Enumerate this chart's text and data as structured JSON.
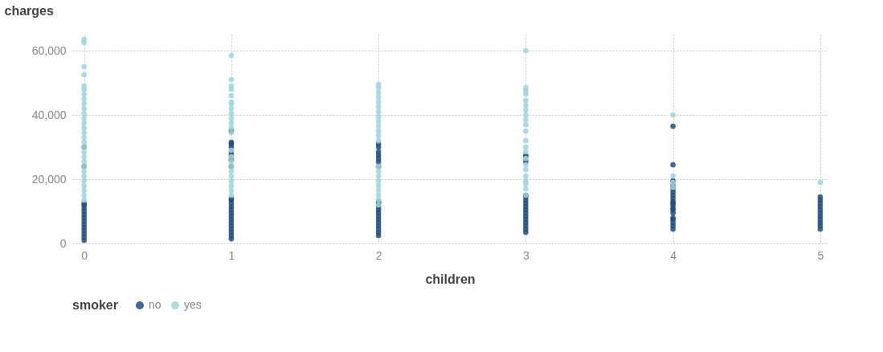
{
  "chart_data": {
    "type": "scatter",
    "xlabel": "children",
    "ylabel": "charges",
    "legend_title": "smoker",
    "legend": "bottom",
    "grid": true,
    "marker": "circle",
    "xlim": [
      -0.08,
      5.05
    ],
    "xticks": [
      0,
      1,
      2,
      3,
      4,
      5
    ],
    "ylim": [
      0,
      65000
    ],
    "yticks": [
      0,
      {
        "value": 20000,
        "label": "20,000"
      },
      {
        "value": 40000,
        "label": "40,000"
      },
      {
        "value": 60000,
        "label": "60,000"
      }
    ],
    "series": [
      {
        "name": "no",
        "color": "#1f4e80",
        "x": [
          0,
          0,
          0,
          0,
          0,
          0,
          0,
          0,
          0,
          0,
          0,
          0,
          0,
          0,
          0,
          1,
          1,
          1,
          1,
          1,
          1,
          1,
          1,
          1,
          1,
          1,
          1,
          1,
          1,
          1,
          1,
          1,
          1,
          1,
          1,
          1,
          1,
          2,
          2,
          2,
          2,
          2,
          2,
          2,
          2,
          2,
          2,
          2,
          2,
          2,
          2,
          2,
          2,
          2,
          2,
          2,
          3,
          3,
          3,
          3,
          3,
          3,
          3,
          3,
          3,
          3,
          3,
          3,
          3,
          3,
          3,
          3,
          4,
          4,
          4,
          4,
          4,
          4,
          4,
          4,
          4,
          4,
          4,
          4,
          4,
          4,
          4,
          4,
          4,
          4,
          4,
          5,
          5,
          5,
          5,
          5,
          5,
          5,
          5,
          5,
          5,
          5
        ],
        "values": [
          1000,
          2000,
          3000,
          4000,
          5000,
          6000,
          7000,
          8000,
          9000,
          10000,
          11000,
          12000,
          12500,
          24000,
          30000,
          1500,
          2500,
          3500,
          4500,
          5500,
          6500,
          7500,
          8500,
          9500,
          10500,
          11500,
          12500,
          13500,
          14000,
          24000,
          26000,
          27500,
          28500,
          30000,
          31000,
          31500,
          35000,
          2500,
          3500,
          4500,
          5500,
          6500,
          7500,
          8500,
          9500,
          10500,
          11500,
          12500,
          13000,
          24000,
          25500,
          26500,
          27500,
          28500,
          30000,
          31000,
          3500,
          4500,
          5500,
          6500,
          7500,
          8500,
          9500,
          10500,
          11500,
          12500,
          13500,
          14500,
          15000,
          25500,
          27000,
          27500,
          4500,
          5500,
          6500,
          7500,
          8000,
          9500,
          10500,
          11000,
          12000,
          12500,
          13000,
          14000,
          15000,
          16000,
          17000,
          18000,
          19500,
          24500,
          36500,
          4500,
          5500,
          6500,
          7500,
          8500,
          9500,
          10500,
          11500,
          12500,
          13500,
          14500
        ]
      },
      {
        "name": "yes",
        "color": "#9fd5dc",
        "x": [
          0,
          0,
          0,
          0,
          0,
          0,
          0,
          0,
          0,
          0,
          0,
          0,
          0,
          0,
          0,
          0,
          0,
          0,
          0,
          0,
          0,
          0,
          0,
          0,
          0,
          0,
          0,
          0,
          0,
          1,
          1,
          1,
          1,
          1,
          1,
          1,
          1,
          1,
          1,
          1,
          1,
          1,
          1,
          1,
          1,
          1,
          1,
          1,
          1,
          1,
          1,
          1,
          2,
          2,
          2,
          2,
          2,
          2,
          2,
          2,
          2,
          2,
          2,
          2,
          2,
          2,
          2,
          2,
          2,
          2,
          2,
          2,
          2,
          2,
          3,
          3,
          3,
          3,
          3,
          3,
          3,
          3,
          3,
          3,
          3,
          3,
          3,
          3,
          3,
          3,
          3,
          3,
          3,
          3,
          3,
          3,
          4,
          4,
          4,
          4,
          5
        ],
        "values": [
          13500,
          15000,
          16500,
          18000,
          19500,
          21000,
          22500,
          24000,
          25500,
          27000,
          28500,
          30000,
          31500,
          33000,
          34500,
          36000,
          37500,
          39000,
          40500,
          42000,
          43500,
          45000,
          46500,
          48000,
          49000,
          52500,
          55000,
          62500,
          63500,
          15000,
          16500,
          18000,
          19500,
          21000,
          22500,
          24000,
          25500,
          27000,
          29000,
          34500,
          36000,
          37500,
          39000,
          40500,
          42000,
          43500,
          44000,
          46000,
          48000,
          49000,
          51000,
          58500,
          12000,
          13500,
          15000,
          16500,
          18000,
          19500,
          21000,
          22500,
          24000,
          32000,
          33500,
          35000,
          36500,
          38000,
          39500,
          41000,
          42500,
          44000,
          45500,
          47000,
          48500,
          49500,
          15000,
          17000,
          18500,
          19500,
          21000,
          23000,
          24500,
          26500,
          28500,
          30000,
          32000,
          35000,
          37000,
          38500,
          40000,
          41500,
          43000,
          44500,
          46500,
          47500,
          48500,
          60000,
          17500,
          19000,
          21000,
          40000,
          19000
        ]
      }
    ]
  }
}
